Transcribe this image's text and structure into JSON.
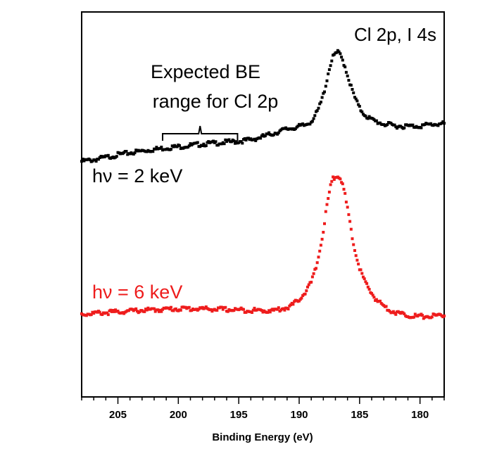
{
  "chart_data": {
    "type": "scatter",
    "title": "",
    "xlabel": "Binding Energy (eV)",
    "ylabel": "",
    "x_reversed": true,
    "xlim": [
      208,
      178
    ],
    "ylim": [
      0,
      100
    ],
    "x_ticks": [
      205,
      200,
      195,
      190,
      185,
      180
    ],
    "grid": false,
    "annotations": {
      "core_levels": "Cl 2p, I 4s",
      "expected_line1": "Expected BE",
      "expected_line2": "range for Cl 2p",
      "expected_range": [
        201.3,
        195.1
      ]
    },
    "series": [
      {
        "name": "hν = 2 keV",
        "color": "#000000",
        "points": [
          [
            208.0,
            61.2
          ],
          [
            207.0,
            61.6
          ],
          [
            206.0,
            62.2
          ],
          [
            205.0,
            62.9
          ],
          [
            204.0,
            63.4
          ],
          [
            203.0,
            63.9
          ],
          [
            202.0,
            64.3
          ],
          [
            201.0,
            64.7
          ],
          [
            200.0,
            65.0
          ],
          [
            199.0,
            65.3
          ],
          [
            198.0,
            65.7
          ],
          [
            197.0,
            65.9
          ],
          [
            196.0,
            66.2
          ],
          [
            195.0,
            66.4
          ],
          [
            194.0,
            66.8
          ],
          [
            193.0,
            67.6
          ],
          [
            192.0,
            68.6
          ],
          [
            191.0,
            69.6
          ],
          [
            190.0,
            70.2
          ],
          [
            189.5,
            70.6
          ],
          [
            189.0,
            71.6
          ],
          [
            188.5,
            74.0
          ],
          [
            188.2,
            76.5
          ],
          [
            188.0,
            78.5
          ],
          [
            187.8,
            81.0
          ],
          [
            187.6,
            84.0
          ],
          [
            187.4,
            86.5
          ],
          [
            187.2,
            88.2
          ],
          [
            187.0,
            89.2
          ],
          [
            186.8,
            89.5
          ],
          [
            186.6,
            88.8
          ],
          [
            186.4,
            87.5
          ],
          [
            186.2,
            85.8
          ],
          [
            186.0,
            83.6
          ],
          [
            185.8,
            81.5
          ],
          [
            185.6,
            79.6
          ],
          [
            185.4,
            77.8
          ],
          [
            185.2,
            76.4
          ],
          [
            185.0,
            75.0
          ],
          [
            184.7,
            73.8
          ],
          [
            184.4,
            72.9
          ],
          [
            184.0,
            72.0
          ],
          [
            183.5,
            71.4
          ],
          [
            183.0,
            70.9
          ],
          [
            182.0,
            70.4
          ],
          [
            181.0,
            70.3
          ],
          [
            180.0,
            70.4
          ],
          [
            179.0,
            70.8
          ],
          [
            178.0,
            71.0
          ]
        ]
      },
      {
        "name": "hν = 6 keV",
        "color": "#ee1c1c",
        "points": [
          [
            208.0,
            21.5
          ],
          [
            207.0,
            21.7
          ],
          [
            206.0,
            21.9
          ],
          [
            205.0,
            22.1
          ],
          [
            204.0,
            22.3
          ],
          [
            203.0,
            22.5
          ],
          [
            202.0,
            22.6
          ],
          [
            201.0,
            22.8
          ],
          [
            200.0,
            22.9
          ],
          [
            199.0,
            22.9
          ],
          [
            198.0,
            22.9
          ],
          [
            197.0,
            22.8
          ],
          [
            196.0,
            22.7
          ],
          [
            195.0,
            22.6
          ],
          [
            194.0,
            22.5
          ],
          [
            193.0,
            22.4
          ],
          [
            192.0,
            22.5
          ],
          [
            191.0,
            23.2
          ],
          [
            190.5,
            24.0
          ],
          [
            190.0,
            25.4
          ],
          [
            189.5,
            27.2
          ],
          [
            189.0,
            29.8
          ],
          [
            188.6,
            33.5
          ],
          [
            188.3,
            38.0
          ],
          [
            188.0,
            43.0
          ],
          [
            187.8,
            47.6
          ],
          [
            187.6,
            51.5
          ],
          [
            187.4,
            54.6
          ],
          [
            187.2,
            56.6
          ],
          [
            187.0,
            57.5
          ],
          [
            186.8,
            57.7
          ],
          [
            186.6,
            56.9
          ],
          [
            186.4,
            55.1
          ],
          [
            186.2,
            52.3
          ],
          [
            186.0,
            48.8
          ],
          [
            185.8,
            45.0
          ],
          [
            185.6,
            41.2
          ],
          [
            185.3,
            37.0
          ],
          [
            185.0,
            33.5
          ],
          [
            184.6,
            30.2
          ],
          [
            184.2,
            27.8
          ],
          [
            183.7,
            25.6
          ],
          [
            183.0,
            23.6
          ],
          [
            182.5,
            22.6
          ],
          [
            182.0,
            21.9
          ],
          [
            181.0,
            21.2
          ],
          [
            180.0,
            20.9
          ],
          [
            179.0,
            21.0
          ],
          [
            178.0,
            21.3
          ]
        ]
      }
    ]
  }
}
